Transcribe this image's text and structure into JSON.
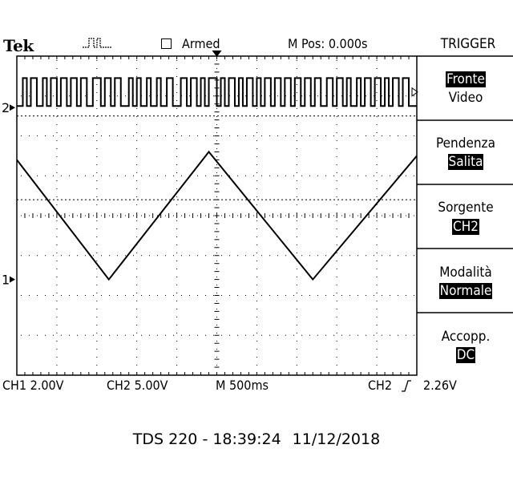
{
  "header": {
    "brand": "Tek",
    "acq_state": "Armed",
    "position": "M Pos: 0.000s"
  },
  "menu": {
    "title": "TRIGGER",
    "items": [
      {
        "label": "Fronte",
        "value": "Video",
        "label_highlight": true
      },
      {
        "label": "Pendenza",
        "value": "Salita",
        "value_highlight": true
      },
      {
        "label": "Sorgente",
        "value": "CH2",
        "value_highlight": true
      },
      {
        "label": "Modalità",
        "value": "Normale",
        "value_highlight": true
      },
      {
        "label": "Accopp.",
        "value": "DC",
        "value_highlight": true
      }
    ]
  },
  "status": {
    "ch1": "CH1 2.00V",
    "ch2": "CH2 5.00V",
    "timebase": "M 500ms",
    "trigger_source": "CH2",
    "trigger_slope_icon": "rising-edge-icon",
    "trigger_level": "2.26V"
  },
  "markers": {
    "ch1": "1",
    "ch2": "2"
  },
  "footer": {
    "model_time": "TDS 220 - 18:39:24",
    "date": "11/12/2018"
  },
  "chart_data": {
    "type": "line",
    "grid": true,
    "divisions": {
      "x": 10,
      "y": 8
    },
    "x_unit": "div",
    "y_unit": "div",
    "xlim": [
      0,
      10
    ],
    "ylim": [
      -4,
      4
    ],
    "series": [
      {
        "name": "CH1",
        "label": "1",
        "values_div": [
          [
            0,
            1.4
          ],
          [
            2.3,
            -1.6
          ],
          [
            4.8,
            1.6
          ],
          [
            7.4,
            -1.6
          ],
          [
            10,
            1.5
          ]
        ]
      },
      {
        "name": "CH2",
        "label": "2",
        "kind": "square",
        "high_div": 3.45,
        "low_div": 2.75,
        "edges_div": [
          0.15,
          0.25,
          0.35,
          0.5,
          0.65,
          0.75,
          0.85,
          1.0,
          1.1,
          1.25,
          1.35,
          1.5,
          1.6,
          1.75,
          1.9,
          2.1,
          2.2,
          2.35,
          2.45,
          2.6,
          2.8,
          2.9,
          3.0,
          3.1,
          3.25,
          3.35,
          3.5,
          3.6,
          3.75,
          3.9,
          4.1,
          4.25,
          4.35,
          4.5,
          4.6,
          4.7,
          4.8,
          5.0,
          5.1,
          5.2,
          5.3,
          5.45,
          5.55,
          5.65,
          5.75,
          5.9,
          6.0,
          6.1,
          6.2,
          6.35,
          6.45,
          6.6,
          6.7,
          6.85,
          6.95,
          7.1,
          7.2,
          7.35,
          7.45,
          7.6,
          7.75,
          7.9,
          8.0,
          8.15,
          8.25,
          8.35,
          8.5,
          8.6,
          8.7,
          8.85,
          8.95,
          9.1,
          9.2,
          9.3,
          9.4,
          9.55,
          9.65,
          9.8
        ]
      }
    ],
    "reference_lines_div": [
      2.5,
      0.4
    ]
  }
}
